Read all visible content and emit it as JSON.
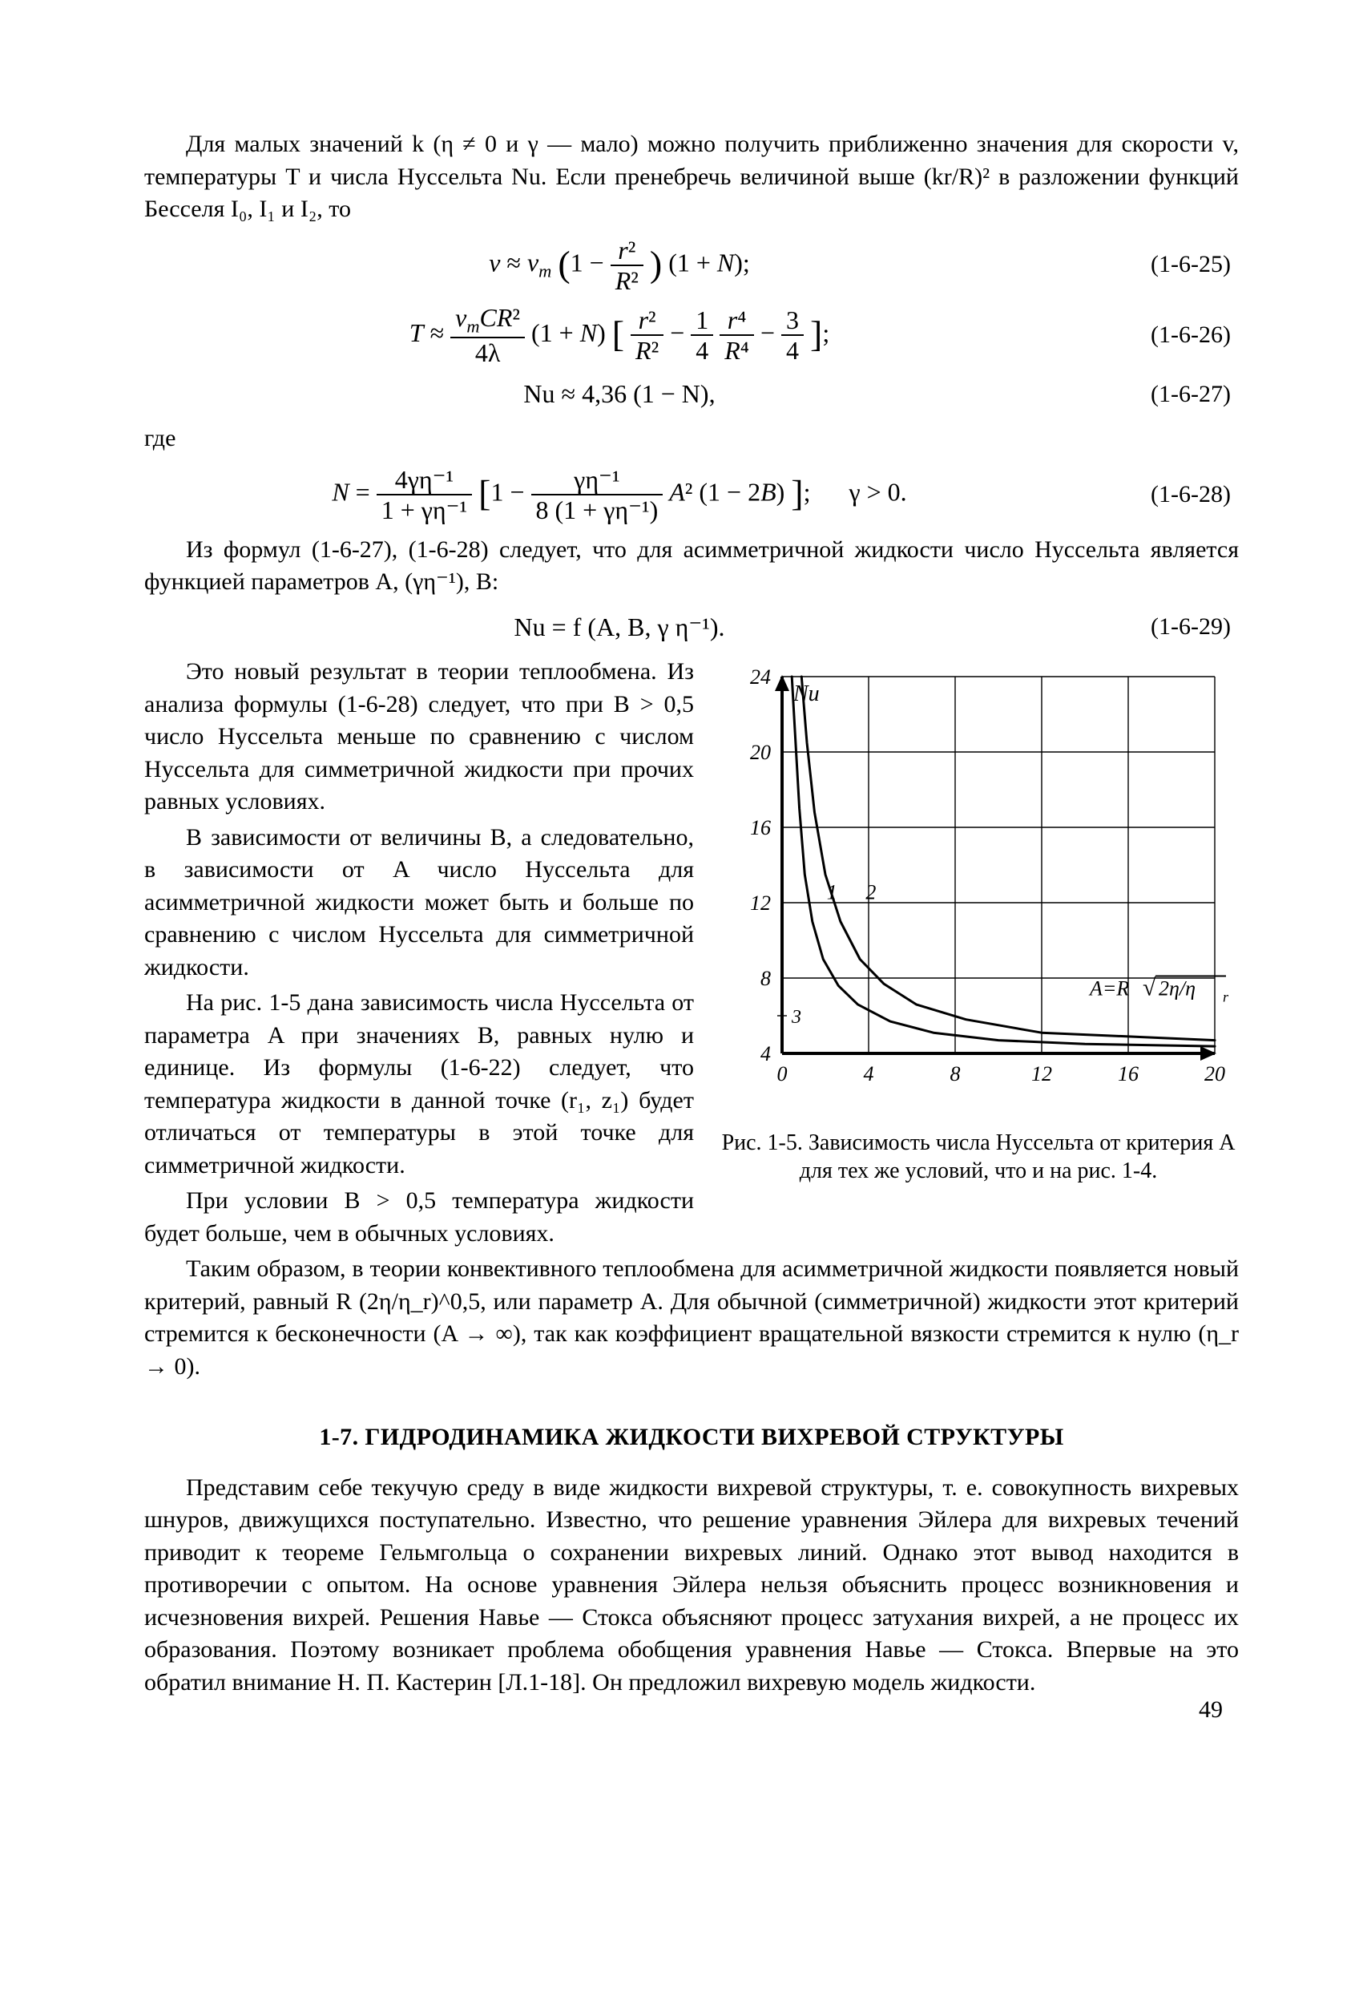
{
  "para1": "Для малых значений k (η ≠ 0 и γ — мало) можно получить приближенно значения для скорости v, температуры T и числа Нуссельта Nu. Если пренебречь величиной выше (kr/R)² в разложении функций Бесселя I₀, I₁ и I₂, то",
  "eq25": "v ≈ v_m (1 − r²/R²)(1 + N);",
  "eq25num": "(1-6-25)",
  "eq26num": "(1-6-26)",
  "eq27": "Nu ≈ 4,36 (1 − N),",
  "eq27num": "(1-6-27)",
  "gde": "где",
  "eq28num": "(1-6-28)",
  "eq28_cond": "γ > 0.",
  "para2": "Из формул (1-6-27), (1-6-28) следует, что для асимметричной жидкости число Нуссельта является функцией параметров A, (γη⁻¹), B:",
  "eq29": "Nu = f (A,  B,  γ  η⁻¹).",
  "eq29num": "(1-6-29)",
  "para3": "Это новый результат в теории теплообмена. Из анализа формулы (1-6-28) следует, что при B > 0,5 число Нуссельта меньше по сравнению с числом Нуссельта для симметричной жидкости при прочих равных условиях.",
  "para4": "В зависимости от величины B, а следовательно, в зависимости от A число Нуссельта для асимметричной жидкости может быть и больше по сравнению с числом Нуссельта для симметричной жидкости.",
  "para5": "На рис. 1-5 дана зависимость числа Нуссельта от параметра A при значениях B, равных нулю и единице. Из формулы (1-6-22) следует, что температура жидкости в данной точке (r₁, z₁) будет отличаться от температуры в этой точке для симметричной жидкости.",
  "para6": "При условии B > 0,5 температура жидкости будет больше, чем в обычных условиях.",
  "para7": "Таким образом, в теории конвективного теплообмена для асимметричной жидкости появляется новый критерий, равный R (2η/η_r)^0,5, или параметр A. Для обычной (симметричной) жидкости этот критерий стремится к бесконечности (A → ∞), так как коэффициент вращательной вязкости стремится к нулю (η_r → 0).",
  "figure": {
    "caption": "Рис. 1-5. Зависимость числа Нуссельта от критерия A для тех же условий, что и на рис. 1-4.",
    "xlim": [
      0,
      20
    ],
    "ylim": [
      4,
      24
    ],
    "xticks": [
      0,
      4,
      8,
      12,
      16,
      20
    ],
    "yticks": [
      4,
      8,
      12,
      16,
      20,
      24
    ],
    "ylabel": "Nu",
    "annotation": "A = R√(2η/η_r)",
    "curve1_label": "1",
    "curve2_label": "2",
    "extra_ytick": "3",
    "axis_width": 2.5,
    "grid_width": 1.4,
    "curve_width": 3.0,
    "axis_color": "#000000",
    "grid_color": "#000000",
    "curve_color": "#000000",
    "font_size_ticks": 26,
    "font_size_label": 28,
    "curve1": [
      [
        0.45,
        24.0
      ],
      [
        0.6,
        21.0
      ],
      [
        0.8,
        17.0
      ],
      [
        1.05,
        13.5
      ],
      [
        1.4,
        11.0
      ],
      [
        1.9,
        9.0
      ],
      [
        2.6,
        7.6
      ],
      [
        3.5,
        6.6
      ],
      [
        5.0,
        5.7
      ],
      [
        7.0,
        5.1
      ],
      [
        10.0,
        4.7
      ],
      [
        14.0,
        4.5
      ],
      [
        20.0,
        4.38
      ]
    ],
    "curve2": [
      [
        0.9,
        24.0
      ],
      [
        1.15,
        20.5
      ],
      [
        1.5,
        16.8
      ],
      [
        2.0,
        13.5
      ],
      [
        2.7,
        11.0
      ],
      [
        3.6,
        9.0
      ],
      [
        4.7,
        7.7
      ],
      [
        6.2,
        6.6
      ],
      [
        8.5,
        5.8
      ],
      [
        12.0,
        5.1
      ],
      [
        20.0,
        4.7
      ]
    ]
  },
  "section_title": "1-7. ГИДРОДИНАМИКА ЖИДКОСТИ ВИХРЕВОЙ СТРУКТУРЫ",
  "para8": "Представим себе текучую среду в виде жидкости вихревой структуры, т. е. совокупность вихревых шнуров, движущихся поступательно. Известно, что решение уравнения Эйлера для вихревых течений приводит к теореме Гельмгольца о сохранении вихревых линий. Однако этот вывод находится в противоречии с опытом. На основе уравнения Эйлера нельзя объяснить процесс возникновения и исчезновения вихрей. Решения Навье — Стокса объясняют процесс затухания вихрей, а не процесс их образования. Поэтому возникает проблема обобщения уравнения Навье — Стокса. Впервые на это обратил внимание Н. П. Кастерин [Л.1-18]. Он предложил вихревую модель жидкости.",
  "page_number": "49"
}
